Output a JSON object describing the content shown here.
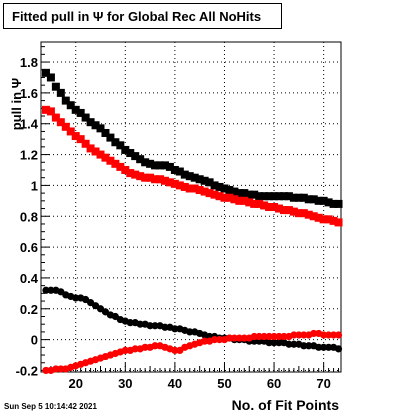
{
  "timestamp": "Sun Sep  5 10:14:42 2021",
  "chart_data": {
    "type": "scatter",
    "title": "Fitted pull in  Ψ  for Global Rec All NoHits",
    "xlabel": "No. of Fit Points",
    "ylabel": "pull in Ψ",
    "xlim": [
      13,
      73.5
    ],
    "ylim": [
      -0.21,
      1.93
    ],
    "xticks": [
      20,
      30,
      40,
      50,
      60,
      70
    ],
    "yticks": [
      -0.2,
      0,
      0.2,
      0.4,
      0.6,
      0.8,
      1,
      1.2,
      1.4,
      1.6,
      1.8
    ],
    "ytick_labels": [
      "-0.2",
      "0",
      "0.2",
      "0.4",
      "0.6",
      "0.8",
      "1",
      "1.2",
      "1.4",
      "1.6",
      "1.8"
    ],
    "grid": true,
    "series": [
      {
        "color": "#000000",
        "marker": "square",
        "x": [
          14,
          15,
          16,
          17,
          18,
          19,
          20,
          21,
          22,
          23,
          24,
          25,
          26,
          27,
          28,
          29,
          30,
          31,
          32,
          33,
          34,
          35,
          36,
          37,
          38,
          39,
          40,
          41,
          42,
          43,
          44,
          45,
          46,
          47,
          48,
          49,
          50,
          51,
          52,
          53,
          54,
          55,
          56,
          57,
          58,
          59,
          60,
          61,
          62,
          63,
          64,
          65,
          66,
          67,
          68,
          69,
          70,
          71,
          72,
          73
        ],
        "y": [
          1.73,
          1.7,
          1.64,
          1.6,
          1.55,
          1.52,
          1.49,
          1.47,
          1.44,
          1.41,
          1.39,
          1.37,
          1.34,
          1.31,
          1.28,
          1.26,
          1.23,
          1.21,
          1.19,
          1.17,
          1.15,
          1.14,
          1.13,
          1.13,
          1.13,
          1.12,
          1.1,
          1.09,
          1.07,
          1.06,
          1.05,
          1.04,
          1.03,
          1.02,
          1.0,
          0.99,
          0.98,
          0.97,
          0.96,
          0.95,
          0.95,
          0.94,
          0.94,
          0.93,
          0.93,
          0.93,
          0.93,
          0.93,
          0.93,
          0.93,
          0.92,
          0.92,
          0.92,
          0.91,
          0.91,
          0.9,
          0.9,
          0.89,
          0.88,
          0.88
        ]
      },
      {
        "color": "#ff0000",
        "marker": "square",
        "x": [
          14,
          15,
          16,
          17,
          18,
          19,
          20,
          21,
          22,
          23,
          24,
          25,
          26,
          27,
          28,
          29,
          30,
          31,
          32,
          33,
          34,
          35,
          36,
          37,
          38,
          39,
          40,
          41,
          42,
          43,
          44,
          45,
          46,
          47,
          48,
          49,
          50,
          51,
          52,
          53,
          54,
          55,
          56,
          57,
          58,
          59,
          60,
          61,
          62,
          63,
          64,
          65,
          66,
          67,
          68,
          69,
          70,
          71,
          72,
          73
        ],
        "y": [
          1.49,
          1.48,
          1.44,
          1.41,
          1.38,
          1.35,
          1.32,
          1.3,
          1.27,
          1.24,
          1.22,
          1.2,
          1.18,
          1.16,
          1.14,
          1.12,
          1.1,
          1.08,
          1.07,
          1.06,
          1.05,
          1.05,
          1.04,
          1.04,
          1.03,
          1.02,
          1.01,
          1.0,
          0.99,
          0.98,
          0.98,
          0.97,
          0.96,
          0.95,
          0.94,
          0.93,
          0.92,
          0.92,
          0.91,
          0.9,
          0.9,
          0.89,
          0.88,
          0.88,
          0.87,
          0.86,
          0.86,
          0.85,
          0.84,
          0.84,
          0.83,
          0.82,
          0.82,
          0.81,
          0.8,
          0.79,
          0.78,
          0.78,
          0.77,
          0.76
        ]
      },
      {
        "color": "#000000",
        "marker": "circle",
        "x": [
          14,
          15,
          16,
          17,
          18,
          19,
          20,
          21,
          22,
          23,
          24,
          25,
          26,
          27,
          28,
          29,
          30,
          31,
          32,
          33,
          34,
          35,
          36,
          37,
          38,
          39,
          40,
          41,
          42,
          43,
          44,
          45,
          46,
          47,
          48,
          49,
          50,
          51,
          52,
          53,
          54,
          55,
          56,
          57,
          58,
          59,
          60,
          61,
          62,
          63,
          64,
          65,
          66,
          67,
          68,
          69,
          70,
          71,
          72,
          73
        ],
        "y": [
          0.32,
          0.32,
          0.32,
          0.31,
          0.29,
          0.28,
          0.27,
          0.27,
          0.26,
          0.24,
          0.22,
          0.2,
          0.18,
          0.16,
          0.15,
          0.13,
          0.12,
          0.11,
          0.11,
          0.1,
          0.1,
          0.09,
          0.09,
          0.09,
          0.08,
          0.08,
          0.07,
          0.07,
          0.06,
          0.05,
          0.05,
          0.04,
          0.03,
          0.02,
          0.02,
          0.01,
          0.01,
          0.01,
          0.0,
          0.0,
          0.0,
          -0.01,
          -0.01,
          -0.01,
          -0.01,
          -0.02,
          -0.02,
          -0.02,
          -0.02,
          -0.03,
          -0.03,
          -0.03,
          -0.04,
          -0.04,
          -0.04,
          -0.05,
          -0.05,
          -0.05,
          -0.05,
          -0.06
        ]
      },
      {
        "color": "#ff0000",
        "marker": "circle",
        "x": [
          14,
          15,
          16,
          17,
          18,
          19,
          20,
          21,
          22,
          23,
          24,
          25,
          26,
          27,
          28,
          29,
          30,
          31,
          32,
          33,
          34,
          35,
          36,
          37,
          38,
          39,
          40,
          41,
          42,
          43,
          44,
          45,
          46,
          47,
          48,
          49,
          50,
          51,
          52,
          53,
          54,
          55,
          56,
          57,
          58,
          59,
          60,
          61,
          62,
          63,
          64,
          65,
          66,
          67,
          68,
          69,
          70,
          71,
          72,
          73
        ],
        "y": [
          -0.2,
          -0.2,
          -0.19,
          -0.19,
          -0.19,
          -0.18,
          -0.17,
          -0.16,
          -0.15,
          -0.14,
          -0.13,
          -0.12,
          -0.11,
          -0.1,
          -0.09,
          -0.08,
          -0.07,
          -0.07,
          -0.06,
          -0.06,
          -0.05,
          -0.05,
          -0.04,
          -0.04,
          -0.05,
          -0.06,
          -0.07,
          -0.07,
          -0.05,
          -0.04,
          -0.03,
          -0.02,
          -0.01,
          -0.01,
          0.0,
          0.0,
          0.0,
          0.01,
          0.01,
          0.01,
          0.01,
          0.01,
          0.02,
          0.02,
          0.02,
          0.02,
          0.02,
          0.02,
          0.02,
          0.02,
          0.03,
          0.03,
          0.03,
          0.03,
          0.04,
          0.04,
          0.03,
          0.03,
          0.03,
          0.03
        ]
      }
    ]
  }
}
